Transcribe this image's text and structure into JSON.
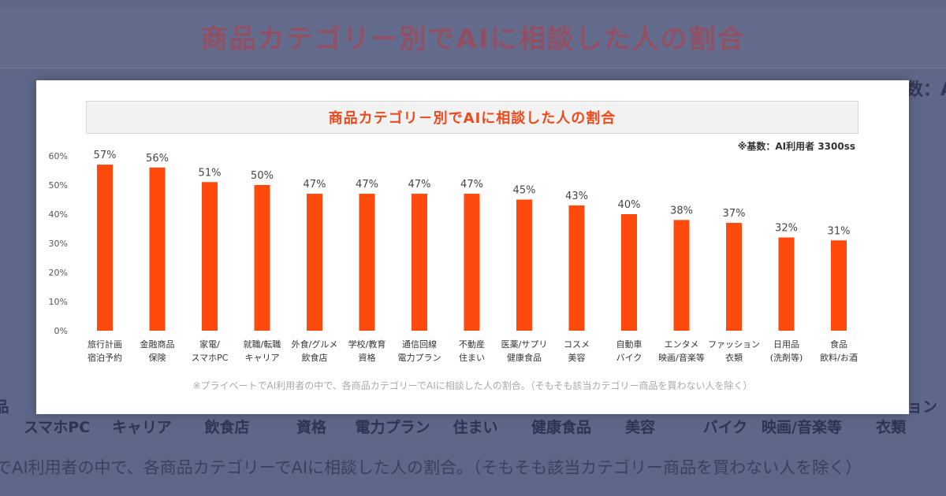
{
  "background": {
    "title": "商品カテゴリー別でAIに相談した人の割合",
    "base_fragment": "数：A",
    "top_fragments": [
      {
        "text": "品"
      },
      {
        "text": "ョン"
      }
    ],
    "categories": [
      "スマホPC",
      "キャリア",
      "飲食店",
      "資格",
      "電力プラン",
      "住まい",
      "健康食品",
      "美容",
      "バイク",
      "映画/音楽等",
      "衣類"
    ],
    "note": "でAI利用者の中で、各商品カテゴリーでAIに相談した人の割合。（そもそも該当カテゴリー商品を買わない人を除く）"
  },
  "card": {
    "title": "商品カテゴリ－別でAIに相談した人の割合",
    "base_note": "※基数：AI利用者 3300ss",
    "footnote": "※プライベートでAI利用者の中で、各商品カテゴリーでAIに相談した人の割合。（そもそも該当カテゴリー商品を買わない人を除く）"
  },
  "chart_data": {
    "type": "bar",
    "title": "商品カテゴリ－別でAIに相談した人の割合",
    "categories": [
      [
        "旅行計画",
        "宿泊予約"
      ],
      [
        "金融商品",
        "保険"
      ],
      [
        "家電/",
        "スマホPC"
      ],
      [
        "就職/転職",
        "キャリア"
      ],
      [
        "外食/グルメ",
        "飲食店"
      ],
      [
        "学校/教育",
        "資格"
      ],
      [
        "通信回線",
        "電力プラン"
      ],
      [
        "不動産",
        "住まい"
      ],
      [
        "医薬/サプリ",
        "健康食品"
      ],
      [
        "コスメ",
        "美容"
      ],
      [
        "自動車",
        "バイク"
      ],
      [
        "エンタメ",
        "映画/音楽等"
      ],
      [
        "ファッション",
        "衣類"
      ],
      [
        "日用品",
        "(洗剤等)"
      ],
      [
        "食品",
        "飲料/お酒"
      ]
    ],
    "values": [
      57,
      56,
      51,
      50,
      47,
      47,
      47,
      47,
      45,
      43,
      40,
      38,
      37,
      32,
      31
    ],
    "data_labels": [
      "57%",
      "56%",
      "51%",
      "50%",
      "47%",
      "47%",
      "47%",
      "47%",
      "45%",
      "43%",
      "40%",
      "38%",
      "37%",
      "32%",
      "31%"
    ],
    "y_ticks": [
      "0%",
      "10%",
      "20%",
      "30%",
      "40%",
      "50%",
      "60%"
    ],
    "ylim": [
      0,
      60
    ],
    "xlabel": "",
    "ylabel": "",
    "grid": false,
    "bar_color": "#ff4a0d"
  }
}
